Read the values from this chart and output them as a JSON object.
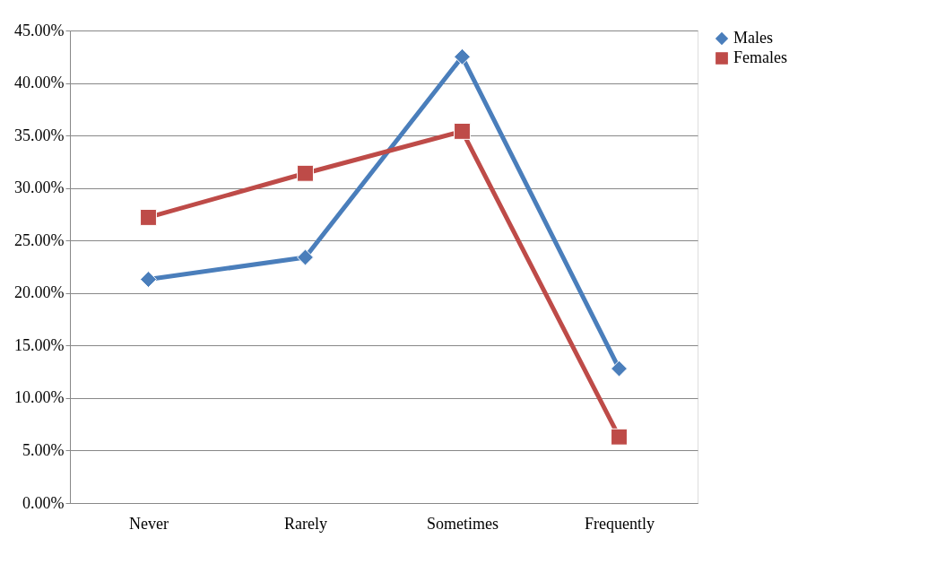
{
  "chart_data": {
    "type": "line",
    "categories": [
      "Never",
      "Rarely",
      "Sometimes",
      "Frequently"
    ],
    "series": [
      {
        "name": "Males",
        "color": "#4a7ebb",
        "marker": "diamond",
        "values": [
          21.3,
          23.4,
          42.5,
          12.8
        ]
      },
      {
        "name": "Females",
        "color": "#be4b48",
        "marker": "square",
        "values": [
          27.2,
          31.4,
          35.4,
          6.3
        ]
      }
    ],
    "ylim": [
      0,
      45
    ],
    "yticks": [
      {
        "value": 0,
        "label": "0.00%"
      },
      {
        "value": 5,
        "label": "5.00%"
      },
      {
        "value": 10,
        "label": "10.00%"
      },
      {
        "value": 15,
        "label": "15.00%"
      },
      {
        "value": 20,
        "label": "20.00%"
      },
      {
        "value": 25,
        "label": "25.00%"
      },
      {
        "value": 30,
        "label": "30.00%"
      },
      {
        "value": 35,
        "label": "35.00%"
      },
      {
        "value": 40,
        "label": "40.00%"
      },
      {
        "value": 45,
        "label": "45.00%"
      }
    ],
    "grid": "y",
    "legend": "right",
    "line_style": "solid"
  }
}
